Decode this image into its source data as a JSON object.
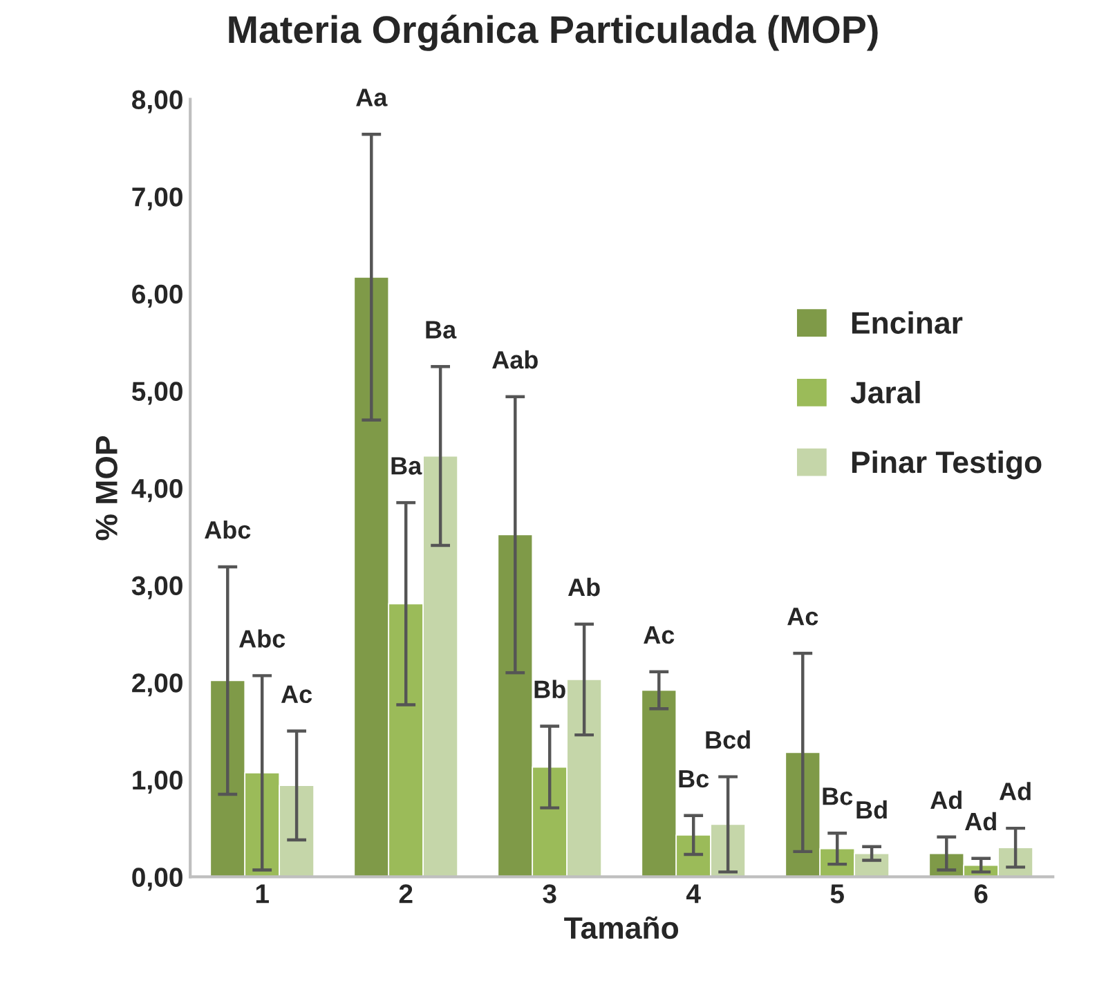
{
  "chart_data": {
    "type": "bar",
    "title": "Materia Orgánica Particulada (MOP)",
    "xlabel": "Tamaño",
    "ylabel": "% MOP",
    "categories": [
      "1",
      "2",
      "3",
      "4",
      "5",
      "6"
    ],
    "series": [
      {
        "name": "Encinar",
        "color": "#7f9a48",
        "values": [
          2.02,
          6.17,
          3.52,
          1.92,
          1.28,
          0.24
        ],
        "errors": [
          1.17,
          1.47,
          1.42,
          0.19,
          1.02,
          0.17
        ]
      },
      {
        "name": "Jaral",
        "color": "#9bbb59",
        "values": [
          1.07,
          2.81,
          1.13,
          0.43,
          0.29,
          0.12
        ],
        "errors": [
          1.0,
          1.04,
          0.42,
          0.2,
          0.16,
          0.07
        ]
      },
      {
        "name": "Pinar Testigo",
        "color": "#c5d6a9",
        "values": [
          0.94,
          4.33,
          2.03,
          0.54,
          0.24,
          0.3
        ],
        "errors": [
          0.56,
          0.92,
          0.57,
          0.49,
          0.07,
          0.2
        ]
      }
    ],
    "annotations": [
      "Abc",
      "Aa",
      "Aab",
      "Ac",
      "Ac",
      "Ad",
      "Abc",
      "Ba",
      "Bb",
      "Bc",
      "Bc",
      "Ad",
      "Ac",
      "Ba",
      "Ab",
      "Bcd",
      "Bd",
      "Ad"
    ],
    "ylim": [
      0,
      8
    ],
    "yticks": [
      {
        "value": 0,
        "label": "0,00"
      },
      {
        "value": 1,
        "label": "1,00"
      },
      {
        "value": 2,
        "label": "2,00"
      },
      {
        "value": 3,
        "label": "3,00"
      },
      {
        "value": 4,
        "label": "4,00"
      },
      {
        "value": 5,
        "label": "5,00"
      },
      {
        "value": 6,
        "label": "6,00"
      },
      {
        "value": 7,
        "label": "7,00"
      },
      {
        "value": 8,
        "label": "8,00"
      }
    ],
    "legend": "right",
    "grid": false
  }
}
